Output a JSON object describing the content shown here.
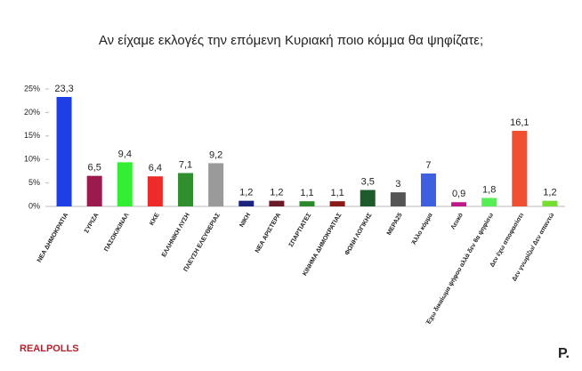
{
  "chart_data": {
    "type": "bar",
    "title": "Αν είχαμε εκλογές την επόμενη Κυριακή ποιο κόμμα θα ψηφίζατε;",
    "categories": [
      "ΝΕΑ ΔΗΜΟΚΡΑΤΙΑ",
      "ΣΥΡΙΖΑ",
      "ΠΑΣΟΚ/ΚΙΝΑΛ",
      "ΚΚΕ",
      "ΕΛΛΗΝΙΚΗ ΛΥΣΗ",
      "ΠΛΕΥΣΗ ΕΛΕΥΘΕΡΙΑΣ",
      "ΝΙΚΗ",
      "ΝΕΑ ΑΡΙΣΤΕΡΑ",
      "ΣΠΑΡΤΙΑΤΕΣ",
      "ΚΙΝΗΜΑ ΔΗΜΟΚΡΑΤΙΑΣ",
      "ΦΩΝΗ ΛΟΓΙΚΗΣ",
      "ΜΕΡΑ25",
      "Άλλο κόμμα",
      "Λευκό",
      "Έχω δικαίωμα ψήφου αλλά δεν θα ψηφίσω",
      "Δεν έχω αποφασίσει",
      "Δεν γνωρίζω/ Δεν απαντώ"
    ],
    "values": [
      23.3,
      6.5,
      9.4,
      6.4,
      7.1,
      9.2,
      1.2,
      1.2,
      1.1,
      1.1,
      3.5,
      3,
      7,
      0.9,
      1.8,
      16.1,
      1.2
    ],
    "value_labels": [
      "23,3",
      "6,5",
      "9,4",
      "6,4",
      "7,1",
      "9,2",
      "1,2",
      "1,2",
      "1,1",
      "1,1",
      "3,5",
      "3",
      "7",
      "0,9",
      "1,8",
      "16,1",
      "1,2"
    ],
    "colors": [
      "#1f3fe6",
      "#9b1b4f",
      "#33ee33",
      "#ee2b2b",
      "#2f8f2f",
      "#9a9a9a",
      "#1a237e",
      "#6b1a2a",
      "#2a8a2a",
      "#8b1a1a",
      "#1f5a2a",
      "#555555",
      "#3d5fe0",
      "#c0188a",
      "#55ee55",
      "#f05030",
      "#77dd33"
    ],
    "ylim": [
      0,
      25
    ],
    "yticks": [
      {
        "value": 0,
        "label": "0%"
      },
      {
        "value": 5,
        "label": "5%"
      },
      {
        "value": 10,
        "label": "10%"
      },
      {
        "value": 15,
        "label": "15%"
      },
      {
        "value": 20,
        "label": "20%"
      },
      {
        "value": 25,
        "label": "25%"
      }
    ],
    "grid": false
  },
  "branding": {
    "left": "REALPOLLS",
    "right": "P."
  }
}
